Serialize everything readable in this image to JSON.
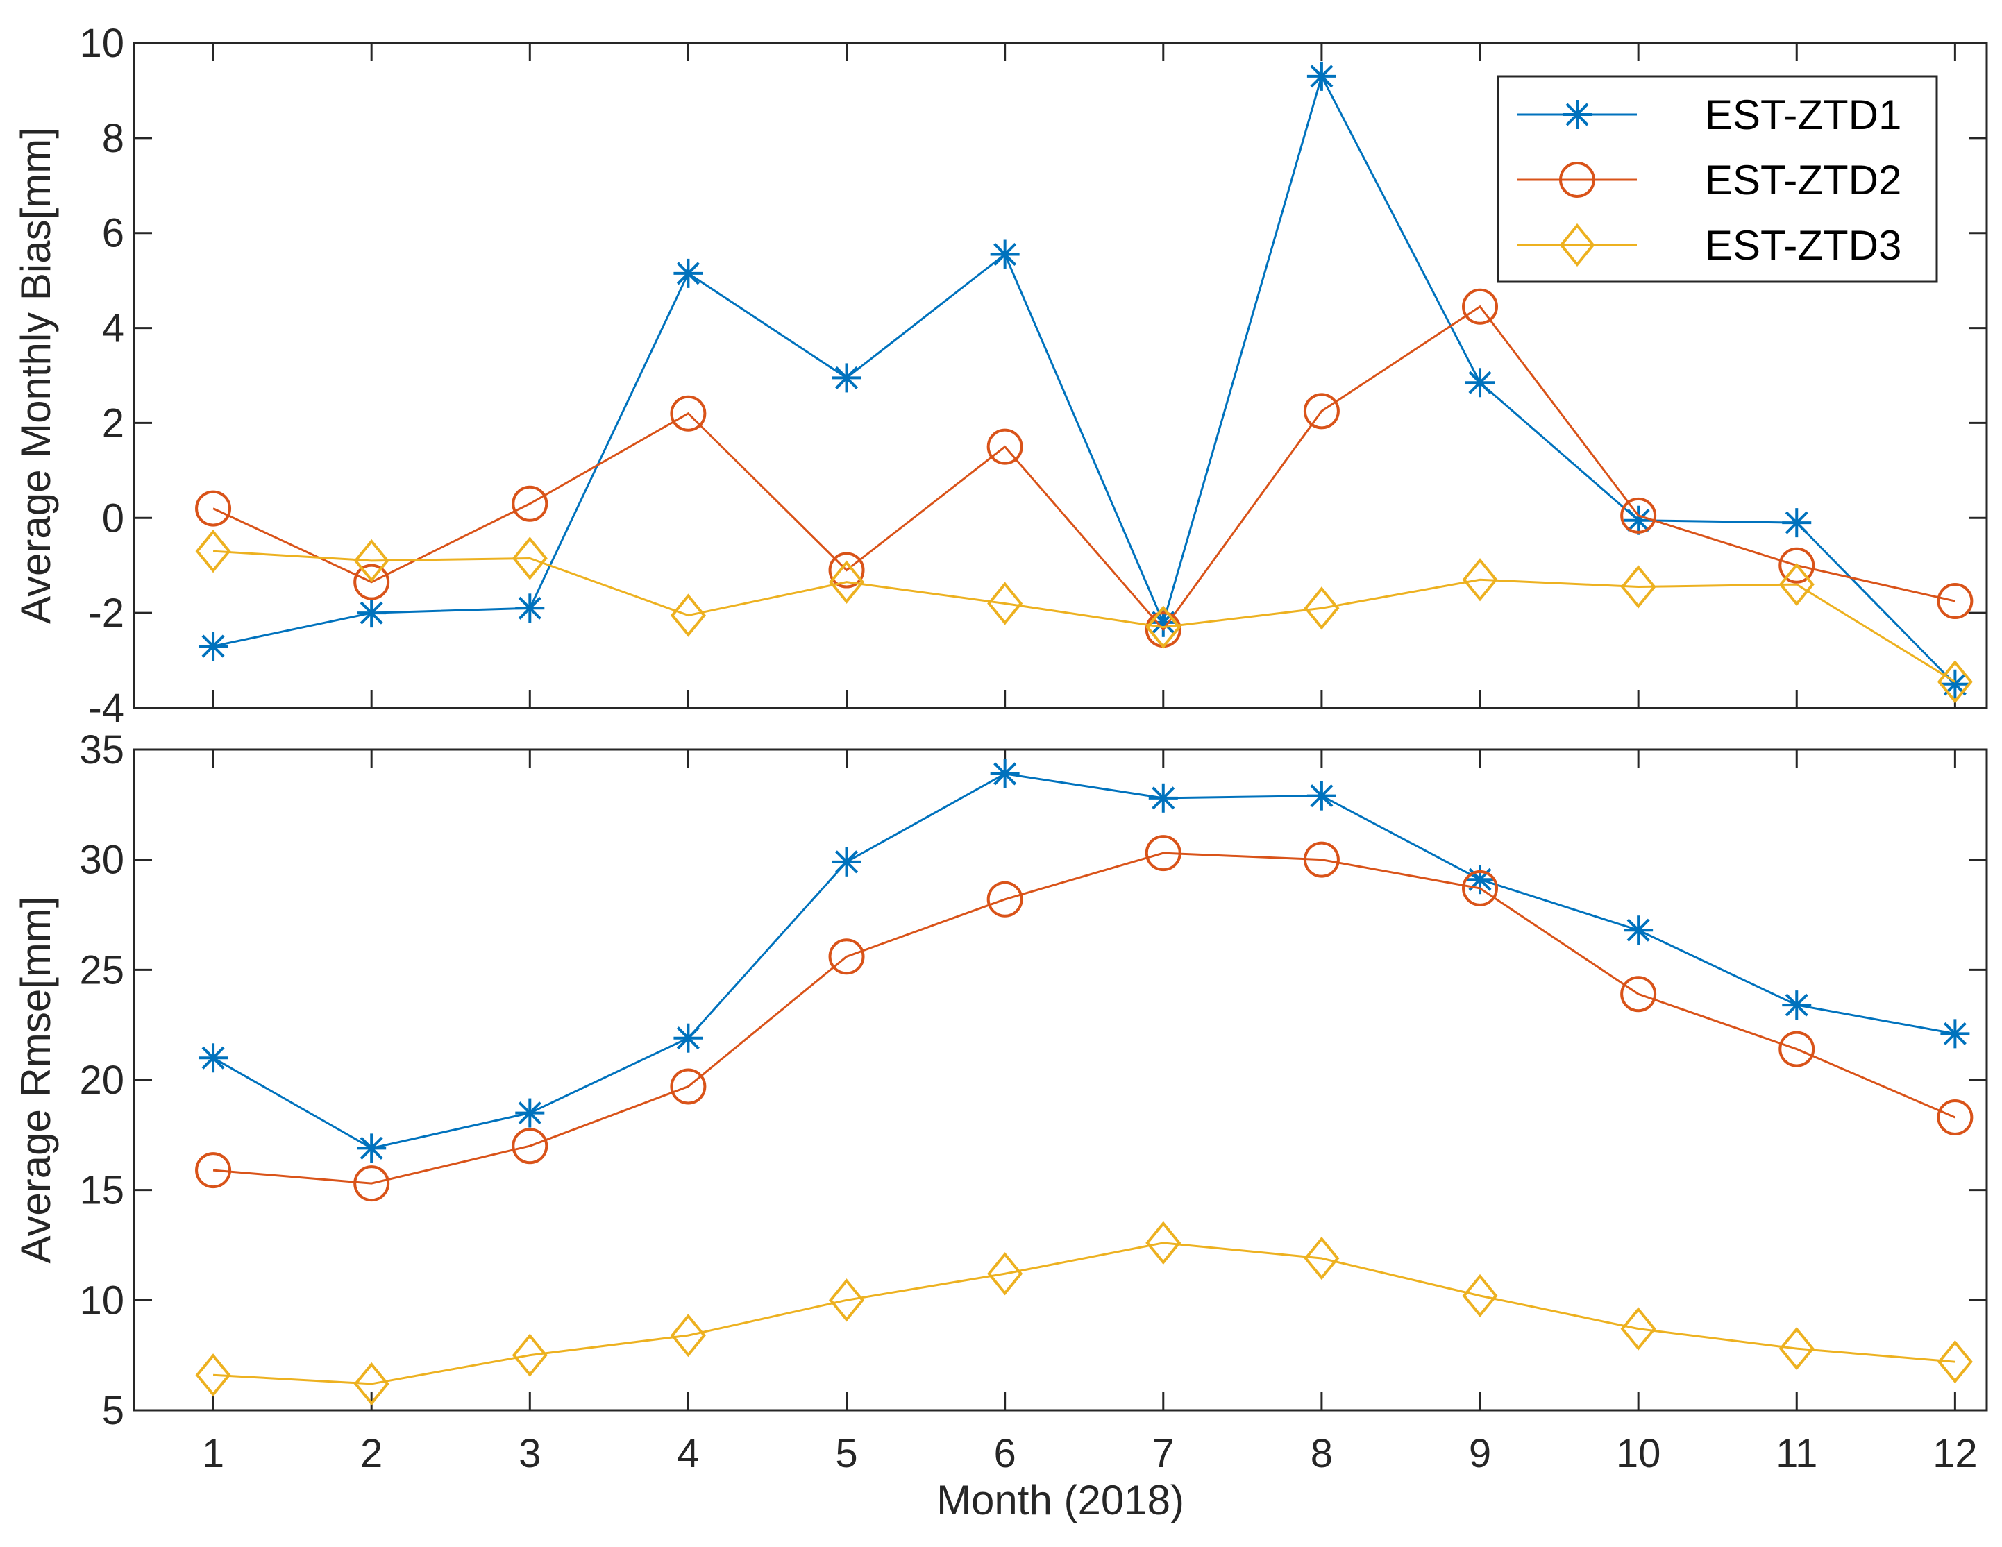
{
  "chart_data": {
    "type": "line",
    "xlabel": "Month (2018)",
    "x": [
      1,
      2,
      3,
      4,
      5,
      6,
      7,
      8,
      9,
      10,
      11,
      12
    ],
    "xlim": [
      0.5,
      12.2
    ],
    "colors": {
      "EST-ZTD1": "#0072BD",
      "EST-ZTD2": "#D95319",
      "EST-ZTD3": "#EDB120"
    },
    "legend": {
      "entries": [
        "EST-ZTD1",
        "EST-ZTD2",
        "EST-ZTD3"
      ],
      "placement": "top-right"
    },
    "panels": [
      {
        "id": "bias",
        "ylabel": "Average Monthly Bias[mm]",
        "ylim": [
          -4,
          10
        ],
        "yticks": [
          -4,
          -2,
          0,
          2,
          4,
          6,
          8,
          10
        ],
        "series": [
          {
            "name": "EST-ZTD1",
            "marker": "asterisk",
            "values": [
              -2.7,
              -2.0,
              -1.9,
              5.15,
              2.95,
              5.55,
              -2.2,
              9.3,
              2.85,
              -0.05,
              -0.1,
              -3.5
            ]
          },
          {
            "name": "EST-ZTD2",
            "marker": "circle",
            "values": [
              0.2,
              -1.35,
              0.3,
              2.2,
              -1.1,
              1.5,
              -2.35,
              2.25,
              4.45,
              0.05,
              -1.0,
              -1.75
            ]
          },
          {
            "name": "EST-ZTD3",
            "marker": "diamond",
            "values": [
              -0.7,
              -0.9,
              -0.85,
              -2.05,
              -1.35,
              -1.8,
              -2.3,
              -1.9,
              -1.3,
              -1.45,
              -1.4,
              -3.45
            ]
          }
        ]
      },
      {
        "id": "rmse",
        "ylabel": "Average Rmse[mm]",
        "ylim": [
          5,
          35
        ],
        "yticks": [
          5,
          10,
          15,
          20,
          25,
          30,
          35
        ],
        "series": [
          {
            "name": "EST-ZTD1",
            "marker": "asterisk",
            "values": [
              21.0,
              16.9,
              18.5,
              21.9,
              29.9,
              33.9,
              32.8,
              32.9,
              29.1,
              26.8,
              23.4,
              22.1
            ]
          },
          {
            "name": "EST-ZTD2",
            "marker": "circle",
            "values": [
              15.9,
              15.3,
              17.0,
              19.7,
              25.6,
              28.2,
              30.3,
              30.0,
              28.7,
              23.9,
              21.4,
              18.3
            ]
          },
          {
            "name": "EST-ZTD3",
            "marker": "diamond",
            "values": [
              6.6,
              6.2,
              7.5,
              8.4,
              10.0,
              11.2,
              12.6,
              11.9,
              10.2,
              8.7,
              7.8,
              7.2
            ]
          }
        ]
      }
    ]
  }
}
